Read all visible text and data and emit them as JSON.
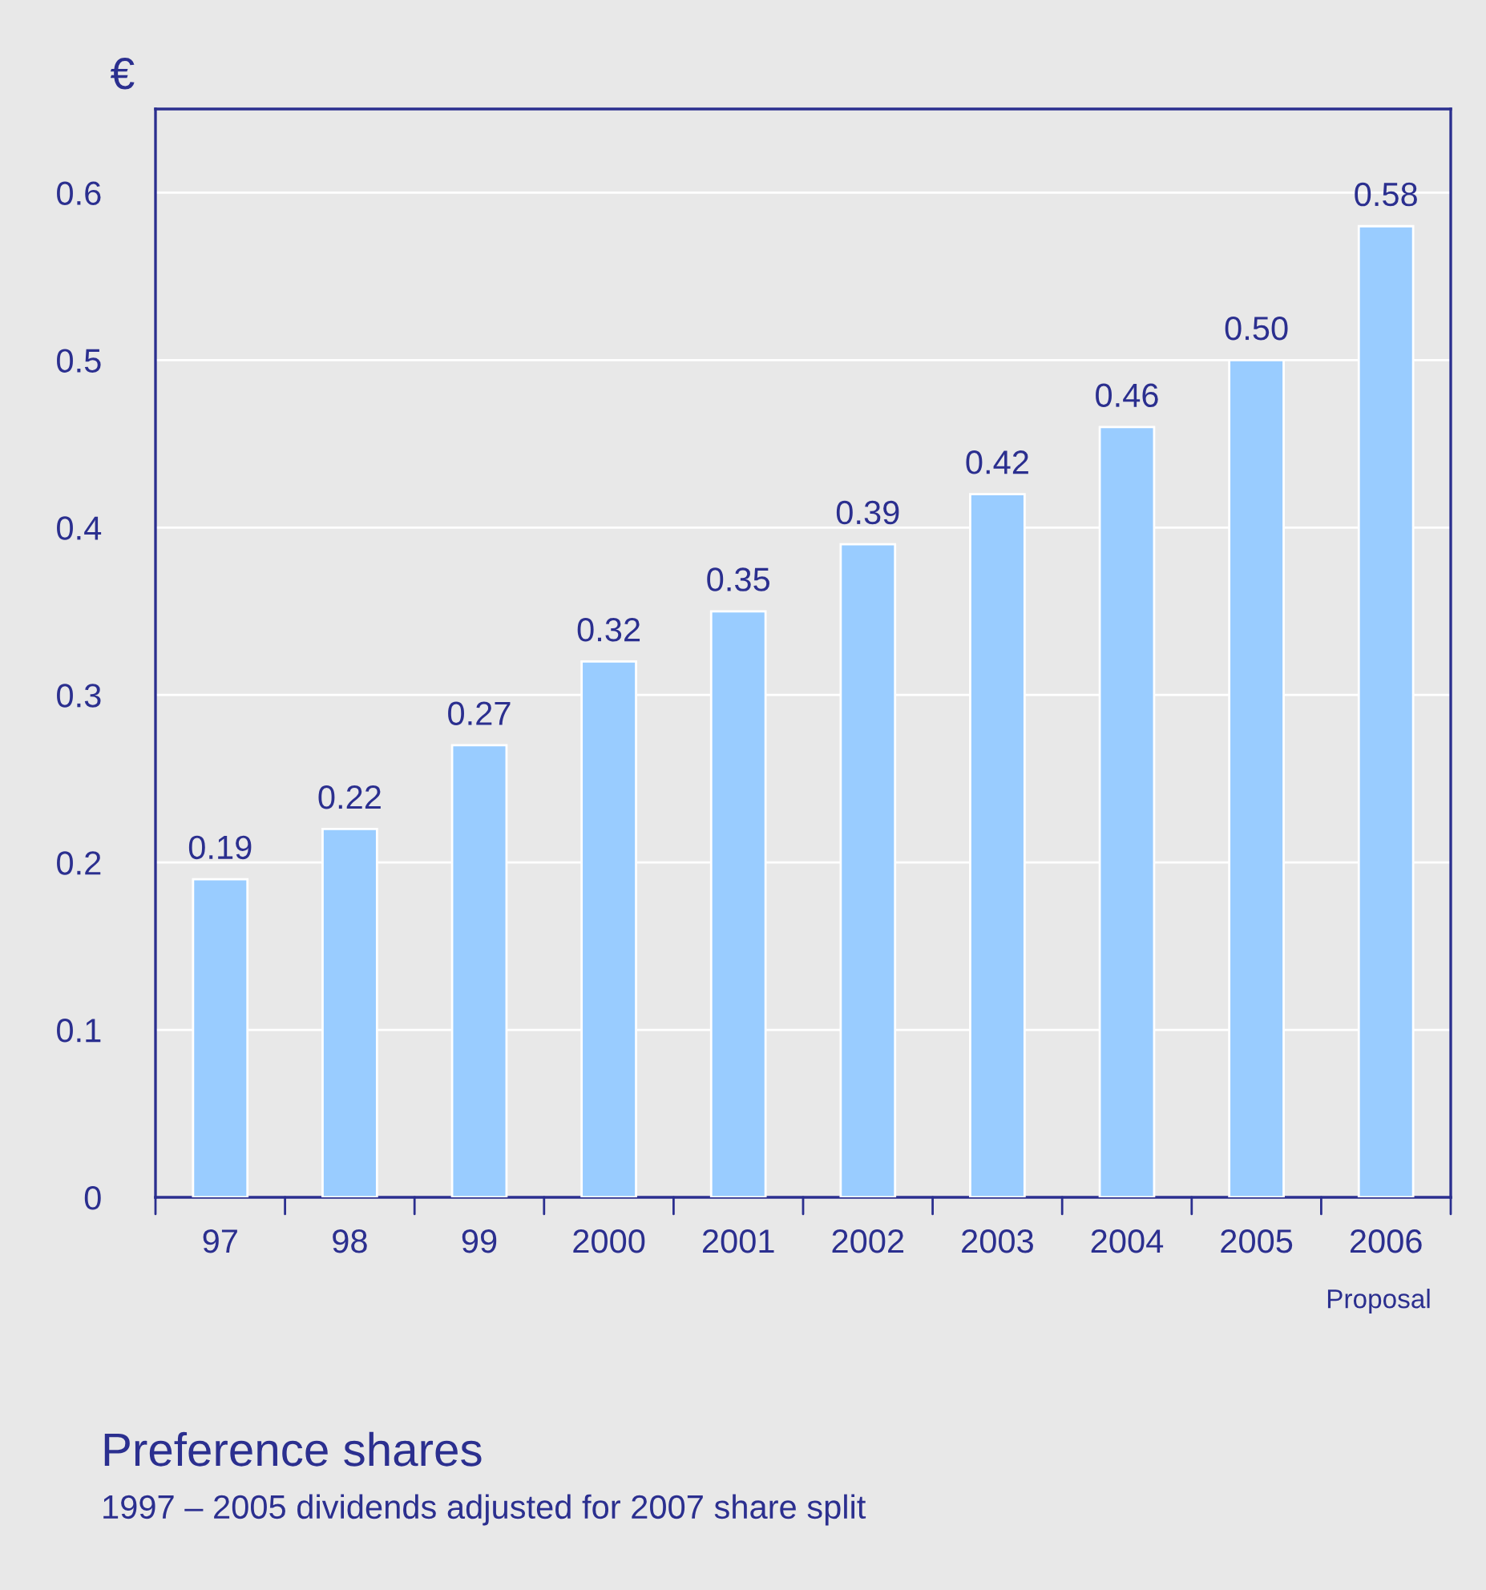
{
  "chart_data": {
    "type": "bar",
    "title": "Preference shares",
    "subtitle": "1997 – 2005 dividends adjusted for 2007 share split",
    "ylabel": "€",
    "categories": [
      "97",
      "98",
      "99",
      "2000",
      "2001",
      "2002",
      "2003",
      "2004",
      "2005",
      "2006"
    ],
    "values": [
      0.19,
      0.22,
      0.27,
      0.32,
      0.35,
      0.39,
      0.42,
      0.46,
      0.5,
      0.58
    ],
    "value_labels": [
      "0.19",
      "0.22",
      "0.27",
      "0.32",
      "0.35",
      "0.39",
      "0.42",
      "0.46",
      "0.50",
      "0.58"
    ],
    "color": "#99ccff",
    "ylim": [
      0,
      0.65
    ],
    "yticks": [
      0,
      0.1,
      0.2,
      0.3,
      0.4,
      0.5,
      0.6
    ],
    "grid": "y",
    "annotations": [
      "Proposal"
    ]
  }
}
